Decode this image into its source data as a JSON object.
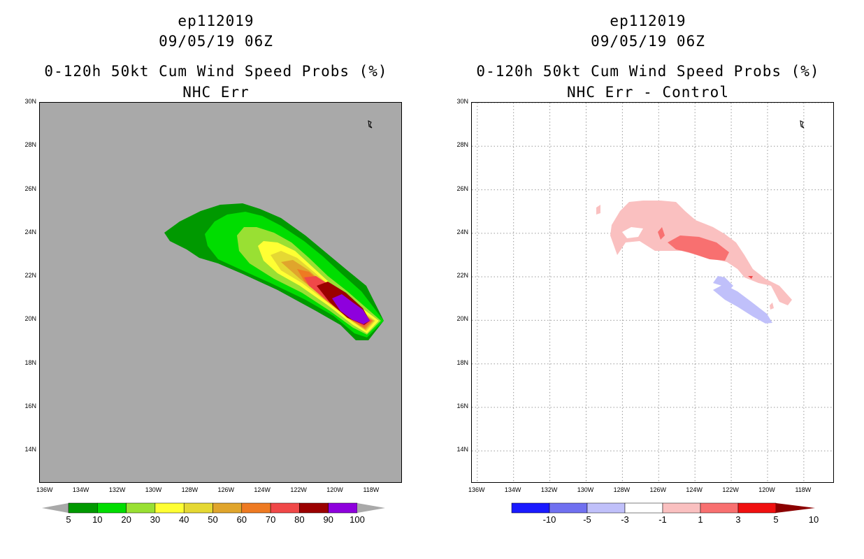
{
  "chart_data": [
    {
      "type": "heatmap",
      "storm_id": "ep112019",
      "datetime": "09/05/19 06Z",
      "title": "0-120h 50kt Cum Wind Speed Probs (%)",
      "subtitle": "NHC Err",
      "x_ticks": [
        "136W",
        "134W",
        "132W",
        "130W",
        "128W",
        "126W",
        "124W",
        "122W",
        "120W",
        "118W"
      ],
      "y_ticks": [
        "30N",
        "28N",
        "26N",
        "24N",
        "22N",
        "20N",
        "18N",
        "16N",
        "14N"
      ],
      "xlim": [
        -136.3,
        -116.3
      ],
      "ylim": [
        12.5,
        30
      ],
      "grid": false,
      "colorbar": {
        "labels": [
          "5",
          "10",
          "20",
          "30",
          "40",
          "50",
          "60",
          "70",
          "80",
          "90",
          "100"
        ],
        "colors": [
          "#009900",
          "#00dd00",
          "#99e033",
          "#ffff33",
          "#e5d833",
          "#e0a52c",
          "#ee7a22",
          "#f04848",
          "#9b0000",
          "#8e00dd"
        ]
      },
      "contour_levels": [
        5,
        10,
        20,
        30,
        40,
        50,
        60,
        70,
        80,
        90
      ]
    },
    {
      "type": "heatmap",
      "storm_id": "ep112019",
      "datetime": "09/05/19 06Z",
      "title": "0-120h 50kt Cum Wind Speed Probs (%)",
      "subtitle": "NHC Err - Control",
      "x_ticks": [
        "136W",
        "134W",
        "132W",
        "130W",
        "128W",
        "126W",
        "124W",
        "122W",
        "120W",
        "118W"
      ],
      "y_ticks": [
        "30N",
        "28N",
        "26N",
        "24N",
        "22N",
        "20N",
        "18N",
        "16N",
        "14N"
      ],
      "xlim": [
        -136.3,
        -116.3
      ],
      "ylim": [
        12.5,
        30
      ],
      "grid": true,
      "colorbar": {
        "labels": [
          "-10",
          "-5",
          "-3",
          "-1",
          "1",
          "3",
          "5",
          "10"
        ],
        "colors": [
          "#0000a0",
          "#1a1aff",
          "#7070f0",
          "#c0c0fa",
          "#ffffff",
          "#fac0c0",
          "#f87070",
          "#f01010",
          "#8b0000"
        ]
      },
      "contour_levels": [
        -3,
        -1,
        1,
        3
      ]
    }
  ]
}
